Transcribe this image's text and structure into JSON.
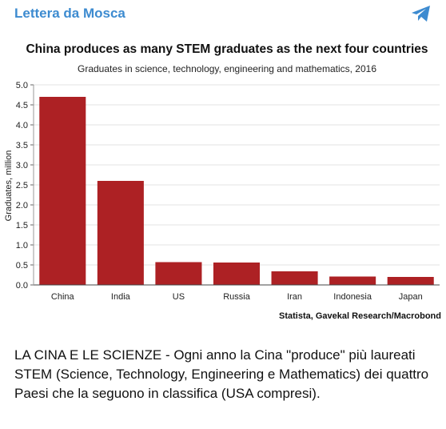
{
  "channel": {
    "name": "Lettera da Mosca",
    "icon": "telegram-icon"
  },
  "chart_data": {
    "type": "bar",
    "title": "China produces as many STEM graduates as the next four countries",
    "subtitle": "Graduates in science, technology, engineering and mathematics, 2016",
    "ylabel": "Graduates, million",
    "xlabel": "",
    "source": "Statista, Gavekal Research/Macrobond",
    "categories": [
      "China",
      "India",
      "US",
      "Russia",
      "Iran",
      "Indonesia",
      "Japan"
    ],
    "values": [
      4.7,
      2.6,
      0.57,
      0.56,
      0.34,
      0.21,
      0.2
    ],
    "ylim": [
      0,
      5
    ],
    "yticks": [
      "0.0",
      "0.5",
      "1.0",
      "1.5",
      "2.0",
      "2.5",
      "3.0",
      "3.5",
      "4.0",
      "4.5",
      "5.0"
    ],
    "grid": true,
    "bar_color": "#ad2124"
  },
  "post": {
    "text": "LA CINA E LE SCIENZE - Ogni anno la Cina \"produce\" più laureati STEM (Science, Technology, Engineering e Mathematics) dei quattro Paesi che la seguono in classifica (USA compresi)."
  }
}
